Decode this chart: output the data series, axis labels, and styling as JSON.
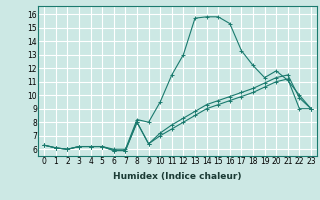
{
  "title": "",
  "xlabel": "Humidex (Indice chaleur)",
  "bg_color": "#cce8e4",
  "grid_color": "#ffffff",
  "line_color": "#1a7a6e",
  "xlim": [
    -0.5,
    23.5
  ],
  "ylim": [
    5.5,
    16.6
  ],
  "xticks": [
    0,
    1,
    2,
    3,
    4,
    5,
    6,
    7,
    8,
    9,
    10,
    11,
    12,
    13,
    14,
    15,
    16,
    17,
    18,
    19,
    20,
    21,
    22,
    23
  ],
  "yticks": [
    6,
    7,
    8,
    9,
    10,
    11,
    12,
    13,
    14,
    15,
    16
  ],
  "series": [
    [
      6.3,
      6.1,
      6.0,
      6.2,
      6.2,
      6.2,
      6.0,
      6.0,
      8.2,
      8.0,
      9.5,
      11.5,
      13.0,
      15.7,
      15.8,
      15.8,
      15.3,
      13.3,
      12.2,
      11.3,
      11.8,
      11.1,
      10.0,
      9.0
    ],
    [
      6.3,
      6.1,
      6.0,
      6.2,
      6.2,
      6.2,
      5.9,
      5.9,
      8.0,
      6.4,
      7.0,
      7.5,
      8.0,
      8.5,
      9.0,
      9.3,
      9.6,
      9.9,
      10.2,
      10.6,
      11.0,
      11.2,
      9.0,
      9.0
    ],
    [
      6.3,
      6.1,
      6.0,
      6.2,
      6.2,
      6.2,
      5.9,
      5.9,
      8.0,
      6.4,
      7.2,
      7.8,
      8.3,
      8.8,
      9.3,
      9.6,
      9.9,
      10.2,
      10.5,
      10.9,
      11.3,
      11.5,
      9.8,
      9.0
    ]
  ],
  "tick_fontsize": 5.5,
  "xlabel_fontsize": 6.5
}
